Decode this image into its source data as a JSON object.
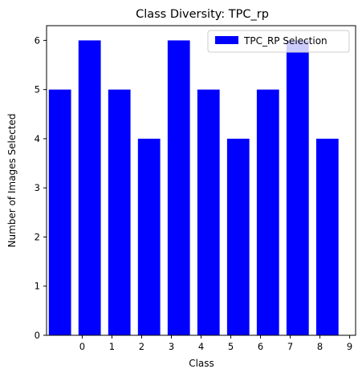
{
  "chart_data": {
    "type": "bar",
    "title": "Class Diversity: TPC_rp",
    "xlabel": "Class",
    "ylabel": "Number of Images Selected",
    "bar_positions": [
      -0.75,
      0.25,
      1.25,
      2.25,
      3.25,
      4.25,
      5.25,
      6.25,
      7.25,
      8.25
    ],
    "values": [
      5,
      6,
      5,
      4,
      6,
      5,
      4,
      5,
      6,
      4
    ],
    "xticks": [
      0,
      1,
      2,
      3,
      4,
      5,
      6,
      7,
      8,
      9
    ],
    "xlim": [
      -1.2,
      9.2
    ],
    "yticks": [
      0,
      1,
      2,
      3,
      4,
      5,
      6
    ],
    "ylim": [
      0,
      6.3
    ],
    "bar_width": 0.75,
    "series": [
      {
        "name": "TPC_RP Selection",
        "color": "#0000ff"
      }
    ],
    "legend_position": "top-right",
    "grid": false
  }
}
